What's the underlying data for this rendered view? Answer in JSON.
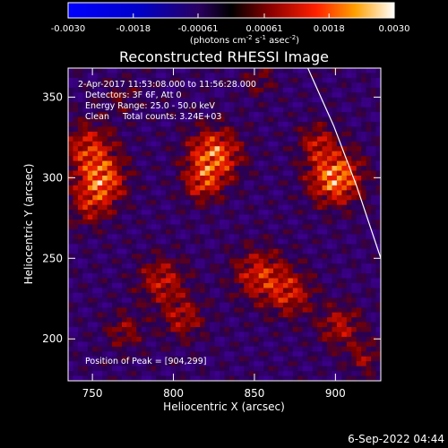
{
  "chart_data": {
    "type": "heatmap",
    "title": "Reconstructed RHESSI Image",
    "xlabel": "Heliocentric X (arcsec)",
    "ylabel": "Heliocentric Y (arcsec)",
    "xlim": [
      735,
      928
    ],
    "ylim": [
      174,
      368
    ],
    "x_ticks": [
      750,
      800,
      850,
      900
    ],
    "y_ticks": [
      200,
      250,
      300,
      350
    ],
    "colorbar": {
      "min": -0.003,
      "max": 0.003,
      "ticks": [
        -0.003,
        -0.0018,
        -0.00061,
        0.00061,
        0.0018,
        0.003
      ],
      "tick_labels": [
        "-0.0030",
        "-0.0018",
        "-0.00061",
        "0.00061",
        "0.0018",
        "0.0030"
      ],
      "unit_prefix": "(photons cm",
      "unit_exp1": "-2",
      "unit_mid1": " s",
      "unit_exp2": "-1",
      "unit_mid2": " asec",
      "unit_exp3": "-2",
      "unit_suffix": ")"
    },
    "info_lines": [
      "2-Apr-2017 11:53:08.000 to 11:56:28.000",
      "Detectors: 3F 6F, Att 0",
      "Energy Range: 25.0 - 50.0 keV",
      "Clean     Total counts: 3.24E+03"
    ],
    "peak_label": "Position of Peak = [904,299]",
    "sources": [
      {
        "x": 748,
        "y": 318,
        "amp": 0.0018,
        "sigma": 11
      },
      {
        "x": 756,
        "y": 298,
        "amp": 0.0024,
        "sigma": 10
      },
      {
        "x": 748,
        "y": 282,
        "amp": 0.0012,
        "sigma": 9
      },
      {
        "x": 825,
        "y": 314,
        "amp": 0.0027,
        "sigma": 11
      },
      {
        "x": 818,
        "y": 296,
        "amp": 0.0016,
        "sigma": 8
      },
      {
        "x": 900,
        "y": 300,
        "amp": 0.003,
        "sigma": 11
      },
      {
        "x": 889,
        "y": 322,
        "amp": 0.0014,
        "sigma": 8
      },
      {
        "x": 793,
        "y": 236,
        "amp": 0.0016,
        "sigma": 10
      },
      {
        "x": 806,
        "y": 213,
        "amp": 0.0014,
        "sigma": 9
      },
      {
        "x": 770,
        "y": 205,
        "amp": 0.0011,
        "sigma": 8
      },
      {
        "x": 853,
        "y": 240,
        "amp": 0.0018,
        "sigma": 11
      },
      {
        "x": 872,
        "y": 228,
        "amp": 0.0016,
        "sigma": 10
      },
      {
        "x": 903,
        "y": 208,
        "amp": 0.0015,
        "sigma": 9
      },
      {
        "x": 918,
        "y": 188,
        "amp": 0.0011,
        "sigma": 7
      },
      {
        "x": 853,
        "y": 360,
        "amp": 0.0008,
        "sigma": 7
      },
      {
        "x": 768,
        "y": 350,
        "amp": 0.0007,
        "sigma": 7
      }
    ],
    "limb_curve": [
      [
        883,
        368
      ],
      [
        899,
        332
      ],
      [
        913,
        295
      ],
      [
        928,
        250
      ]
    ]
  },
  "footer": {
    "date": "6-Sep-2022 04:44"
  }
}
